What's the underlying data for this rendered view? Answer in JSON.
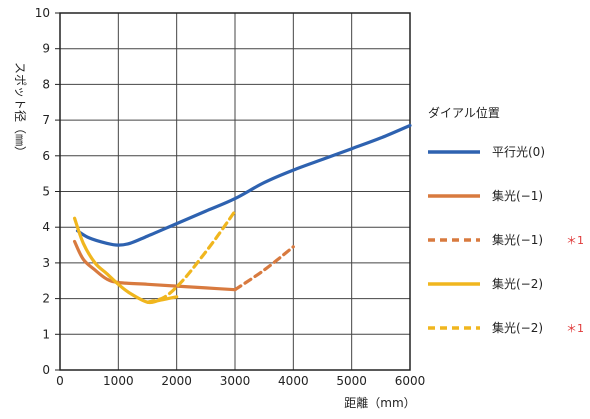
{
  "chart_data": {
    "type": "line",
    "title": "",
    "xlabel": "距離（mm）",
    "ylabel": "スポット径（㎜）",
    "xlim": [
      0,
      6000
    ],
    "ylim": [
      0,
      10
    ],
    "xticks": [
      0,
      1000,
      2000,
      3000,
      4000,
      5000,
      6000
    ],
    "yticks": [
      0,
      1,
      2,
      3,
      4,
      5,
      6,
      7,
      8,
      9,
      10
    ],
    "grid": true,
    "legend": {
      "title": "ダイアル位置",
      "placement": "right"
    },
    "series": [
      {
        "name": "平行光(0)",
        "color": "#2e62b0",
        "style": "solid",
        "note": "",
        "x": [
          300,
          500,
          800,
          1000,
          1200,
          1500,
          2000,
          2500,
          3000,
          3500,
          4000,
          4500,
          5000,
          5500,
          6000
        ],
        "y": [
          3.9,
          3.7,
          3.55,
          3.5,
          3.55,
          3.75,
          4.1,
          4.45,
          4.8,
          5.25,
          5.6,
          5.9,
          6.2,
          6.5,
          6.85
        ]
      },
      {
        "name": "集光(−1)",
        "color": "#d87a3f",
        "style": "solid",
        "note": "",
        "x": [
          250,
          400,
          600,
          800,
          1000,
          1500,
          2000,
          2500,
          3000
        ],
        "y": [
          3.6,
          3.1,
          2.8,
          2.55,
          2.45,
          2.4,
          2.35,
          2.3,
          2.25
        ]
      },
      {
        "name": "集光(−1)",
        "color": "#d87a3f",
        "style": "dashed",
        "note": "＊1",
        "x": [
          3000,
          3500,
          4000
        ],
        "y": [
          2.25,
          2.8,
          3.45
        ]
      },
      {
        "name": "集光(−2)",
        "color": "#f0b61e",
        "style": "solid",
        "note": "",
        "x": [
          250,
          400,
          600,
          800,
          1000,
          1200,
          1500,
          1700,
          2000
        ],
        "y": [
          4.25,
          3.55,
          3.0,
          2.7,
          2.4,
          2.15,
          1.9,
          1.95,
          2.05
        ]
      },
      {
        "name": "集光(−2)",
        "color": "#f0b61e",
        "style": "dashed",
        "note": "＊1",
        "x": [
          1500,
          1800,
          2100,
          2400,
          2700,
          3000
        ],
        "y": [
          1.9,
          2.05,
          2.5,
          3.1,
          3.75,
          4.45
        ]
      }
    ]
  }
}
